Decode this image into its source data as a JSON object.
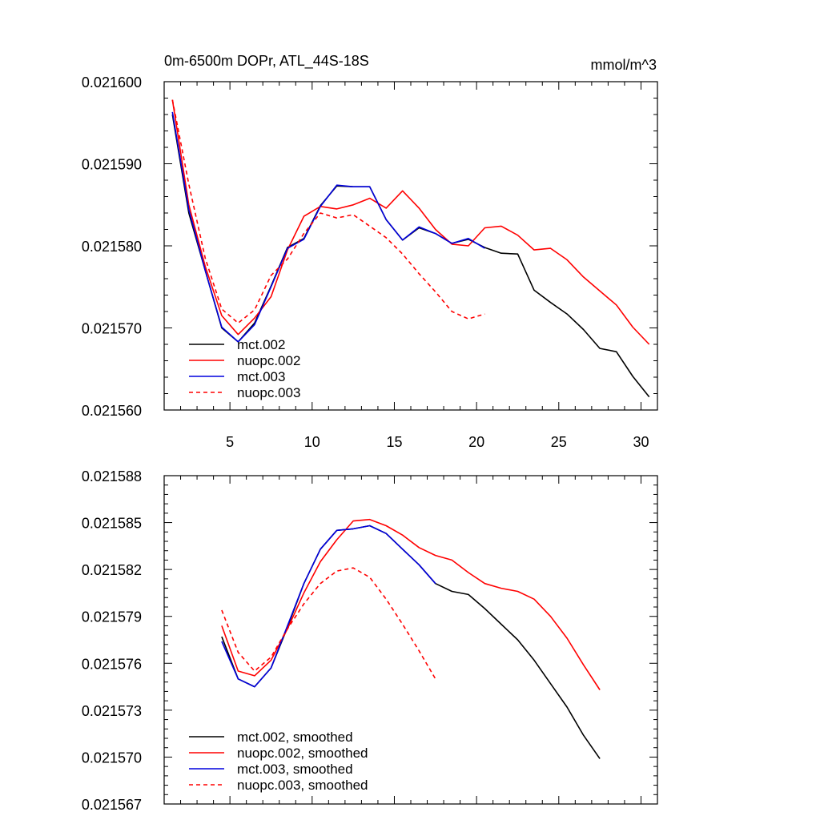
{
  "chart_data": [
    {
      "type": "line",
      "title_left": "0m-6500m DOPr, ATL_44S-18S",
      "title_right": "mmol/m^3",
      "xlim": [
        1,
        31
      ],
      "ylim": [
        0.02156,
        0.0216
      ],
      "xticks": [
        5,
        10,
        15,
        20,
        25,
        30
      ],
      "xtick_labels": [
        "5",
        "10",
        "15",
        "20",
        "25",
        "30"
      ],
      "yticks": [
        0.02156,
        0.02157,
        0.02158,
        0.02159,
        0.0216
      ],
      "ytick_labels": [
        "0.021560",
        "0.021570",
        "0.021580",
        "0.021590",
        "0.021600"
      ],
      "legend_position": "bottom-left",
      "series": [
        {
          "name": "mct.002",
          "color": "#000000",
          "dash": "solid",
          "x": [
            1.5,
            2.5,
            3.5,
            4.5,
            5.5,
            6.5,
            7.5,
            8.5,
            9.5,
            10.5,
            11.5,
            12.5,
            13.5,
            14.5,
            15.5,
            16.5,
            17.5,
            18.5,
            19.5,
            20.5,
            21.5,
            22.5,
            23.5,
            24.5,
            25.5,
            26.5,
            27.5,
            28.5,
            29.5,
            30.5
          ],
          "y": [
            0.021596,
            0.021584,
            0.021577,
            0.02157,
            0.0215683,
            0.0215706,
            0.0215751,
            0.0215798,
            0.0215809,
            0.0215849,
            0.0215873,
            0.0215872,
            0.0215872,
            0.0215832,
            0.0215807,
            0.0215822,
            0.0215815,
            0.0215803,
            0.0215808,
            0.0215798,
            0.0215791,
            0.021579,
            0.0215746,
            0.0215731,
            0.0215717,
            0.0215698,
            0.0215675,
            0.0215671,
            0.0215641,
            0.0215616
          ]
        },
        {
          "name": "nuopc.002",
          "color": "#ff0000",
          "dash": "solid",
          "x": [
            1.5,
            2.5,
            3.5,
            4.5,
            5.5,
            6.5,
            7.5,
            8.5,
            9.5,
            10.5,
            11.5,
            12.5,
            13.5,
            14.5,
            15.5,
            16.5,
            17.5,
            18.5,
            19.5,
            20.5,
            21.5,
            22.5,
            23.5,
            24.5,
            25.5,
            26.5,
            27.5,
            28.5,
            29.5,
            30.5
          ],
          "y": [
            0.0215978,
            0.021585,
            0.0215775,
            0.0215715,
            0.0215692,
            0.0215712,
            0.0215738,
            0.0215795,
            0.0215836,
            0.0215848,
            0.0215845,
            0.021585,
            0.0215858,
            0.0215846,
            0.0215867,
            0.0215846,
            0.021582,
            0.0215802,
            0.02158,
            0.0215822,
            0.0215824,
            0.0215813,
            0.0215795,
            0.0215797,
            0.0215783,
            0.0215762,
            0.0215745,
            0.0215728,
            0.0215701,
            0.021568
          ]
        },
        {
          "name": "mct.003",
          "color": "#0000dd",
          "dash": "solid",
          "x": [
            1.5,
            2.5,
            3.5,
            4.5,
            5.5,
            6.5,
            7.5,
            8.5,
            9.5,
            10.5,
            11.5,
            12.5,
            13.5,
            14.5,
            15.5,
            16.5,
            17.5,
            18.5,
            19.5,
            20.5
          ],
          "y": [
            0.0215963,
            0.0215844,
            0.021577,
            0.0215701,
            0.0215683,
            0.0215704,
            0.021575,
            0.0215797,
            0.0215808,
            0.0215848,
            0.0215874,
            0.0215872,
            0.0215872,
            0.0215832,
            0.0215807,
            0.0215823,
            0.0215815,
            0.0215803,
            0.0215809,
            0.0215797
          ]
        },
        {
          "name": "nuopc.003",
          "color": "#ff0000",
          "dash": "dashed",
          "x": [
            1.5,
            2.5,
            3.5,
            4.5,
            5.5,
            6.5,
            7.5,
            8.5,
            9.5,
            10.5,
            11.5,
            12.5,
            13.5,
            14.5,
            15.5,
            16.5,
            17.5,
            18.5,
            19.5,
            20.5
          ],
          "y": [
            0.0215978,
            0.0215875,
            0.0215785,
            0.0215723,
            0.0215706,
            0.0215722,
            0.0215764,
            0.0215784,
            0.0215815,
            0.021584,
            0.0215834,
            0.0215838,
            0.0215824,
            0.021581,
            0.021579,
            0.0215766,
            0.0215744,
            0.021572,
            0.0215711,
            0.0215717
          ]
        }
      ]
    },
    {
      "type": "line",
      "xlim": [
        1,
        31
      ],
      "ylim": [
        0.021567,
        0.021588
      ],
      "xticks": [
        5,
        10,
        15,
        20,
        25,
        30
      ],
      "yticks": [
        0.021567,
        0.02157,
        0.021573,
        0.021576,
        0.021579,
        0.021582,
        0.021585,
        0.021588
      ],
      "ytick_labels": [
        "0.021567",
        "0.021570",
        "0.021573",
        "0.021576",
        "0.021579",
        "0.021582",
        "0.021585",
        "0.021588"
      ],
      "legend_position": "bottom-left",
      "series": [
        {
          "name": "mct.002, smoothed",
          "color": "#000000",
          "dash": "solid",
          "x": [
            4.5,
            5.5,
            6.5,
            7.5,
            8.5,
            9.5,
            10.5,
            11.5,
            12.5,
            13.5,
            14.5,
            15.5,
            16.5,
            17.5,
            18.5,
            19.5,
            20.5,
            21.5,
            22.5,
            23.5,
            24.5,
            25.5,
            26.5,
            27.5
          ],
          "y": [
            0.0215777,
            0.021575,
            0.0215745,
            0.0215757,
            0.0215783,
            0.0215811,
            0.0215833,
            0.0215845,
            0.0215846,
            0.0215848,
            0.0215843,
            0.0215833,
            0.0215823,
            0.0215811,
            0.0215806,
            0.0215804,
            0.0215795,
            0.0215785,
            0.0215775,
            0.0215762,
            0.0215747,
            0.0215732,
            0.0215714,
            0.0215699
          ]
        },
        {
          "name": "nuopc.002, smoothed",
          "color": "#ff0000",
          "dash": "solid",
          "x": [
            4.5,
            5.5,
            6.5,
            7.5,
            8.5,
            9.5,
            10.5,
            11.5,
            12.5,
            13.5,
            14.5,
            15.5,
            16.5,
            17.5,
            18.5,
            19.5,
            20.5,
            21.5,
            22.5,
            23.5,
            24.5,
            25.5,
            26.5,
            27.5
          ],
          "y": [
            0.0215784,
            0.0215755,
            0.0215752,
            0.0215762,
            0.0215782,
            0.0215805,
            0.0215825,
            0.0215839,
            0.0215851,
            0.0215852,
            0.0215848,
            0.0215842,
            0.0215834,
            0.0215829,
            0.0215826,
            0.0215818,
            0.0215811,
            0.0215808,
            0.0215806,
            0.0215801,
            0.021579,
            0.0215776,
            0.0215759,
            0.0215743
          ]
        },
        {
          "name": "mct.003, smoothed",
          "color": "#0000dd",
          "dash": "solid",
          "x": [
            4.5,
            5.5,
            6.5,
            7.5,
            8.5,
            9.5,
            10.5,
            11.5,
            12.5,
            13.5,
            14.5,
            15.5,
            16.5,
            17.5
          ],
          "y": [
            0.0215774,
            0.021575,
            0.0215745,
            0.0215757,
            0.0215784,
            0.0215811,
            0.0215833,
            0.0215845,
            0.0215846,
            0.0215848,
            0.0215843,
            0.0215833,
            0.0215823,
            0.0215811
          ]
        },
        {
          "name": "nuopc.003, smoothed",
          "color": "#ff0000",
          "dash": "dashed",
          "x": [
            4.5,
            5.5,
            6.5,
            7.5,
            8.5,
            9.5,
            10.5,
            11.5,
            12.5,
            13.5,
            14.5,
            15.5,
            16.5,
            17.5
          ],
          "y": [
            0.0215794,
            0.0215767,
            0.0215755,
            0.0215764,
            0.0215782,
            0.0215798,
            0.0215811,
            0.0215819,
            0.0215821,
            0.0215815,
            0.0215801,
            0.0215785,
            0.0215768,
            0.021575
          ]
        }
      ]
    }
  ]
}
